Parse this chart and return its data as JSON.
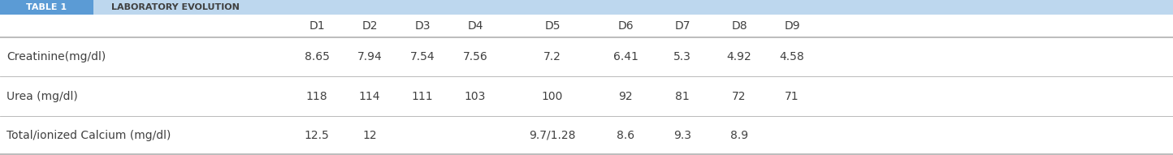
{
  "title_left": "TABLE 1",
  "title_right": "LABORATORY EVOLUTION",
  "header_bg_left": "#5b9bd5",
  "header_bg_right": "#bdd7ee",
  "columns": [
    "D1",
    "D2",
    "D3",
    "D4",
    "D5",
    "D6",
    "D7",
    "D8",
    "D9"
  ],
  "rows": [
    {
      "label": "Creatinine(mg/dl)",
      "values": [
        "8.65",
        "7.94",
        "7.54",
        "7.56",
        "7.2",
        "6.41",
        "5.3",
        "4.92",
        "4.58"
      ]
    },
    {
      "label": "Urea (mg/dl)",
      "values": [
        "118",
        "114",
        "111",
        "103",
        "100",
        "92",
        "81",
        "72",
        "71"
      ]
    },
    {
      "label": "Total/ionized Calcium (mg/dl)",
      "values": [
        "12.5",
        "12",
        "",
        "",
        "9.7/1.28",
        "8.6",
        "9.3",
        "8.9",
        ""
      ]
    }
  ],
  "line_color": "#b0b0b0",
  "text_color": "#404040",
  "font_size": 10,
  "bg_color": "#ffffff",
  "fig_width": 14.44,
  "fig_height": 1.91,
  "dpi": 100
}
